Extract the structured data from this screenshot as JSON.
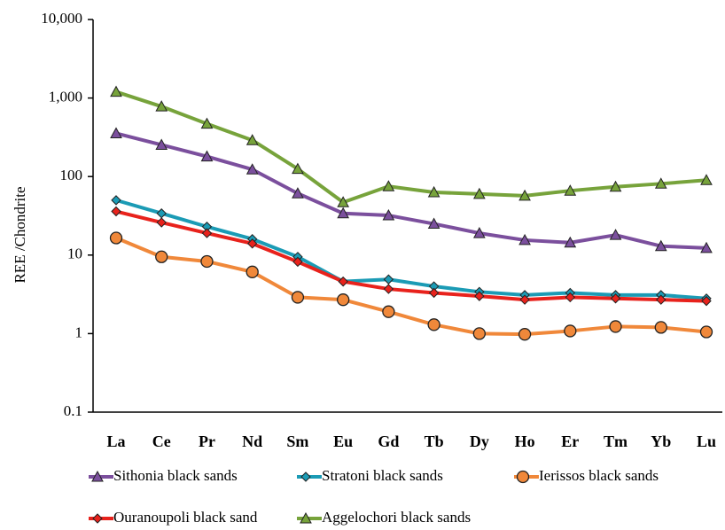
{
  "chart_data": {
    "type": "line",
    "y_label": "REE /Chondrite",
    "log_scale": true,
    "grid": false,
    "categories": [
      "La",
      "Ce",
      "Pr",
      "Nd",
      "Sm",
      "Eu",
      "Gd",
      "Tb",
      "Dy",
      "Ho",
      "Er",
      "Tm",
      "Yb",
      "Lu"
    ],
    "ylim": [
      0.1,
      10000
    ],
    "yticks": [
      0.1,
      1,
      10,
      100,
      {
        "value": 1000,
        "label": "1,000"
      },
      {
        "value": 10000,
        "label": "10,000"
      }
    ],
    "series": [
      {
        "name": "Sithonia black sands",
        "color": "#7b4f9d",
        "marker": "triangle",
        "values": [
          355,
          253,
          180,
          123,
          61,
          34,
          32,
          25,
          19,
          15.5,
          14.4,
          18,
          13,
          12.3
        ]
      },
      {
        "name": "Stratoni black sands",
        "color": "#1b9bb5",
        "marker": "diamond",
        "values": [
          50,
          34,
          23,
          16,
          9.5,
          4.6,
          4.9,
          4.0,
          3.4,
          3.1,
          3.3,
          3.1,
          3.1,
          2.8
        ]
      },
      {
        "name": "Ierissos black sands",
        "color": "#f0883a",
        "marker": "circle",
        "values": [
          16.5,
          9.5,
          8.3,
          6.1,
          2.9,
          2.7,
          1.9,
          1.3,
          1.0,
          0.98,
          1.08,
          1.23,
          1.2,
          1.05
        ]
      },
      {
        "name": "Ouranoupoli black sand",
        "color": "#e8221c",
        "marker": "diamond",
        "values": [
          36,
          26,
          19,
          14,
          8.2,
          4.6,
          3.7,
          3.3,
          3.0,
          2.7,
          2.9,
          2.8,
          2.7,
          2.6
        ]
      },
      {
        "name": "Aggelochori black sands",
        "color": "#77a33b",
        "marker": "triangle",
        "values": [
          1200,
          780,
          470,
          290,
          125,
          47,
          75,
          63,
          60,
          57,
          66,
          74,
          81,
          90
        ]
      }
    ]
  }
}
